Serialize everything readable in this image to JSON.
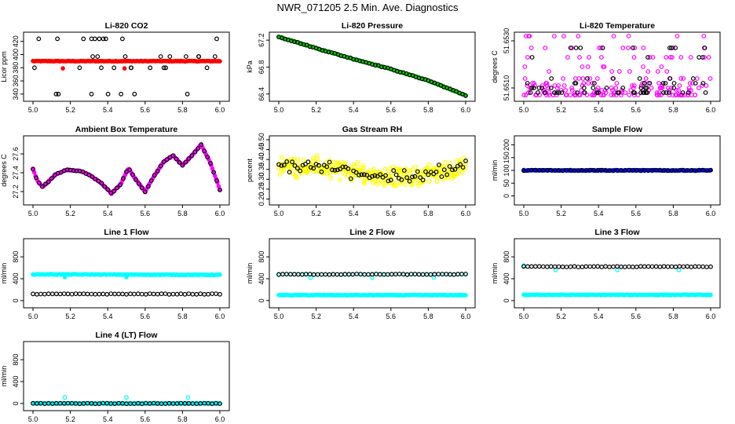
{
  "figure": {
    "title": "NWR_071205  2.5 Min. Ave. Diagnostics"
  },
  "colors": {
    "black": "#000000",
    "red": "#ff0000",
    "green": "#00cc00",
    "magenta": "#ff00ff",
    "yellow": "#ffff00",
    "cyan": "#00ffff",
    "blue": "#0000ff"
  },
  "chart_data": [
    {
      "id": "co2",
      "type": "scatter",
      "title": "Li-820 CO2",
      "ylabel": "Licor ppm",
      "xlim": [
        5.0,
        6.0
      ],
      "ylim": [
        335,
        428
      ],
      "xticks": [
        "5.0",
        "5.2",
        "5.4",
        "5.6",
        "5.8",
        "6.0"
      ],
      "yticks": [
        "340",
        "360",
        "380",
        "400",
        "420"
      ],
      "series": [
        {
          "color": "red",
          "style": "filled",
          "kind": "constant",
          "x": [
            5.0,
            6.0
          ],
          "y": [
            390,
            390
          ]
        },
        {
          "color": "black",
          "style": "open",
          "kind": "levels",
          "levels": [
            424,
            397,
            380,
            340
          ]
        },
        {
          "color": "red",
          "style": "filled",
          "kind": "points",
          "x": [
            5.16,
            5.49
          ],
          "y": [
            379,
            379
          ]
        }
      ]
    },
    {
      "id": "pressure",
      "type": "scatter",
      "title": "Li-820 Pressure",
      "ylabel": "kPa",
      "xlim": [
        5.0,
        6.0
      ],
      "ylim": [
        66.35,
        67.26
      ],
      "xticks": [
        "5.0",
        "5.2",
        "5.4",
        "5.6",
        "5.8",
        "6.0"
      ],
      "yticks": [
        "66.4",
        "66.8",
        "67.2"
      ],
      "series": [
        {
          "color": "green",
          "style": "filled",
          "kind": "line",
          "x": [
            5.0,
            5.2,
            5.4,
            5.6,
            5.8,
            6.0
          ],
          "y": [
            67.25,
            67.08,
            66.92,
            66.77,
            66.6,
            66.38
          ]
        },
        {
          "color": "black",
          "style": "open",
          "kind": "line",
          "x": [
            5.0,
            5.2,
            5.4,
            5.6,
            5.8,
            6.0
          ],
          "y": [
            67.25,
            67.08,
            66.92,
            66.77,
            66.6,
            66.38
          ]
        }
      ]
    },
    {
      "id": "temperature",
      "type": "scatter",
      "title": "Li-820 Temperature",
      "ylabel": "degrees C",
      "xlim": [
        5.0,
        6.0
      ],
      "ylim": [
        51.6506,
        51.6532
      ],
      "xticks": [
        "5.0",
        "5.2",
        "5.4",
        "5.6",
        "5.8",
        "6.0"
      ],
      "yticks": [
        "51.6510",
        "51.6530"
      ],
      "series": [
        {
          "color": "magenta",
          "style": "open",
          "kind": "levels",
          "levels": [
            51.6507,
            51.6508,
            51.6509,
            51.651,
            51.6511,
            51.6512,
            51.6514,
            51.6517,
            51.6519,
            51.6523,
            51.6527,
            51.6532
          ]
        },
        {
          "color": "black",
          "style": "open",
          "kind": "levels",
          "levels": [
            51.6508,
            51.651,
            51.6512,
            51.6514,
            51.6523,
            51.6527
          ]
        }
      ]
    },
    {
      "id": "boxtemp",
      "type": "scatter",
      "title": "Ambient Box Temperature",
      "ylabel": "degrees C",
      "xlim": [
        5.0,
        6.0
      ],
      "ylim": [
        27.1,
        27.75
      ],
      "xticks": [
        "5.0",
        "5.2",
        "5.4",
        "5.6",
        "5.8",
        "6.0"
      ],
      "yticks": [
        "27.2",
        "27.4",
        "27.6"
      ],
      "series": [
        {
          "color": "magenta",
          "style": "filled",
          "kind": "line",
          "x": [
            5.0,
            5.02,
            5.05,
            5.08,
            5.12,
            5.18,
            5.25,
            5.3,
            5.36,
            5.42,
            5.47,
            5.51,
            5.55,
            5.6,
            5.64,
            5.7,
            5.75,
            5.8,
            5.85,
            5.9,
            5.95,
            6.0
          ],
          "y": [
            27.44,
            27.33,
            27.25,
            27.3,
            27.38,
            27.43,
            27.42,
            27.38,
            27.3,
            27.18,
            27.28,
            27.45,
            27.33,
            27.2,
            27.34,
            27.52,
            27.58,
            27.48,
            27.58,
            27.7,
            27.5,
            27.22
          ]
        },
        {
          "color": "black",
          "style": "open",
          "kind": "line",
          "x": [
            5.0,
            5.02,
            5.05,
            5.08,
            5.12,
            5.18,
            5.25,
            5.3,
            5.36,
            5.42,
            5.47,
            5.51,
            5.55,
            5.6,
            5.64,
            5.7,
            5.75,
            5.8,
            5.85,
            5.9,
            5.95,
            6.0
          ],
          "y": [
            27.44,
            27.33,
            27.25,
            27.3,
            27.38,
            27.43,
            27.42,
            27.38,
            27.3,
            27.18,
            27.28,
            27.45,
            27.33,
            27.2,
            27.34,
            27.52,
            27.58,
            27.48,
            27.58,
            27.7,
            27.5,
            27.22
          ]
        }
      ]
    },
    {
      "id": "rh",
      "type": "scatter",
      "title": "Gas Stream RH",
      "ylabel": "percent",
      "xlim": [
        5.0,
        6.0
      ],
      "ylim": [
        0.19,
        0.5
      ],
      "xticks": [
        "5.0",
        "5.2",
        "5.4",
        "5.6",
        "5.8",
        "6.0"
      ],
      "yticks": [
        "0.20",
        "0.25",
        "0.30",
        "0.35",
        "0.40",
        "0.45",
        "0.50"
      ],
      "series": [
        {
          "color": "yellow",
          "style": "open",
          "kind": "band",
          "x": [
            5.0,
            5.25,
            5.5,
            5.7,
            6.0
          ],
          "y": [
            0.37,
            0.36,
            0.32,
            0.31,
            0.36
          ],
          "spread": 0.04
        },
        {
          "color": "black",
          "style": "open",
          "kind": "band",
          "x": [
            5.0,
            5.25,
            5.5,
            5.7,
            6.0
          ],
          "y": [
            0.37,
            0.36,
            0.32,
            0.31,
            0.37
          ],
          "spread": 0.025
        }
      ]
    },
    {
      "id": "sampleflow",
      "type": "scatter",
      "title": "Sample Flow",
      "ylabel": "ml/min",
      "xlim": [
        5.0,
        6.0
      ],
      "ylim": [
        -20,
        220
      ],
      "xticks": [
        "5.0",
        "5.2",
        "5.4",
        "5.6",
        "5.8",
        "6.0"
      ],
      "yticks": [
        "0",
        "50",
        "100",
        "150",
        "200"
      ],
      "series": [
        {
          "color": "blue",
          "style": "filled",
          "kind": "constant",
          "x": [
            5.0,
            6.0
          ],
          "y": [
            100,
            100
          ]
        },
        {
          "color": "black",
          "style": "open",
          "kind": "constant",
          "x": [
            5.0,
            6.0
          ],
          "y": [
            100,
            100
          ]
        }
      ]
    },
    {
      "id": "line1",
      "type": "scatter",
      "title": "Line 1 Flow",
      "ylabel": "ml/min",
      "xlim": [
        5.0,
        6.0
      ],
      "ylim": [
        -60,
        1060
      ],
      "xticks": [
        "5.0",
        "5.2",
        "5.4",
        "5.6",
        "5.8",
        "6.0"
      ],
      "yticks": [
        "0",
        "400",
        "800"
      ],
      "series": [
        {
          "color": "cyan",
          "style": "filled",
          "kind": "constant",
          "x": [
            5.0,
            6.0
          ],
          "y": [
            480,
            470
          ]
        },
        {
          "color": "cyan",
          "style": "filled",
          "kind": "points",
          "x": [
            5.17,
            5.5
          ],
          "y": [
            430,
            430
          ]
        },
        {
          "color": "black",
          "style": "open",
          "kind": "constant",
          "x": [
            5.0,
            6.0
          ],
          "y": [
            120,
            120
          ]
        }
      ]
    },
    {
      "id": "line2",
      "type": "scatter",
      "title": "Line 2 Flow",
      "ylabel": "ml/min",
      "xlim": [
        5.0,
        6.0
      ],
      "ylim": [
        -60,
        1060
      ],
      "xticks": [
        "5.0",
        "5.2",
        "5.4",
        "5.6",
        "5.8",
        "6.0"
      ],
      "yticks": [
        "0",
        "400",
        "800"
      ],
      "series": [
        {
          "color": "cyan",
          "style": "filled",
          "kind": "constant",
          "x": [
            5.0,
            6.0
          ],
          "y": [
            100,
            100
          ]
        },
        {
          "color": "cyan",
          "style": "open",
          "kind": "constant",
          "x": [
            5.0,
            6.0
          ],
          "y": [
            480,
            480
          ]
        },
        {
          "color": "cyan",
          "style": "open",
          "kind": "points",
          "x": [
            5.17,
            5.5,
            5.83
          ],
          "y": [
            420,
            420,
            420
          ]
        },
        {
          "color": "black",
          "style": "open",
          "kind": "constant",
          "x": [
            5.0,
            6.0
          ],
          "y": [
            480,
            480
          ]
        }
      ]
    },
    {
      "id": "line3",
      "type": "scatter",
      "title": "Line 3 Flow",
      "ylabel": "ml/min",
      "xlim": [
        5.0,
        6.0
      ],
      "ylim": [
        -60,
        1060
      ],
      "xticks": [
        "5.0",
        "5.2",
        "5.4",
        "5.6",
        "5.8",
        "6.0"
      ],
      "yticks": [
        "0",
        "400",
        "800"
      ],
      "series": [
        {
          "color": "cyan",
          "style": "filled",
          "kind": "constant",
          "x": [
            5.0,
            6.0
          ],
          "y": [
            105,
            105
          ]
        },
        {
          "color": "cyan",
          "style": "open",
          "kind": "points",
          "x": [
            5.0,
            5.17,
            5.5,
            5.83
          ],
          "y": [
            640,
            560,
            560,
            560
          ]
        },
        {
          "color": "black",
          "style": "open",
          "kind": "constant",
          "x": [
            5.0,
            6.0
          ],
          "y": [
            620,
            620
          ]
        }
      ]
    },
    {
      "id": "line4",
      "type": "scatter",
      "title": "Line 4 (LT) Flow",
      "ylabel": "ml/min",
      "xlim": [
        5.0,
        6.0
      ],
      "ylim": [
        -60,
        1060
      ],
      "xticks": [
        "5.0",
        "5.2",
        "5.4",
        "5.6",
        "5.8",
        "6.0"
      ],
      "yticks": [
        "0",
        "400",
        "800"
      ],
      "series": [
        {
          "color": "cyan",
          "style": "filled",
          "kind": "constant",
          "x": [
            5.0,
            6.0
          ],
          "y": [
            0,
            0
          ]
        },
        {
          "color": "cyan",
          "style": "open",
          "kind": "points",
          "x": [
            5.17,
            5.5,
            5.83
          ],
          "y": [
            110,
            110,
            110
          ]
        },
        {
          "color": "black",
          "style": "open",
          "kind": "constant",
          "x": [
            5.0,
            6.0
          ],
          "y": [
            0,
            0
          ]
        }
      ]
    }
  ]
}
